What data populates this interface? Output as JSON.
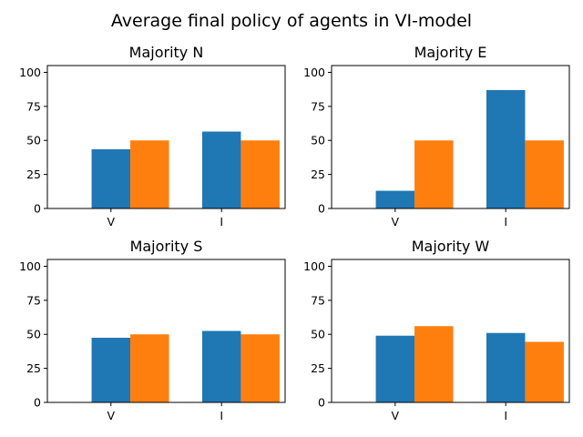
{
  "figure_title": "Average final policy of agents in VI-model",
  "colors": {
    "series_a": "#1f77b4",
    "series_b": "#ff7f0e"
  },
  "chart_data": [
    {
      "type": "bar",
      "title": "Majority N",
      "categories": [
        "V",
        "I"
      ],
      "series": [
        {
          "values": [
            43.5,
            56.5
          ]
        },
        {
          "values": [
            50,
            50
          ]
        }
      ],
      "ylim": [
        0,
        105
      ],
      "yticks": [
        0,
        25,
        50,
        75,
        100
      ],
      "grid": false
    },
    {
      "type": "bar",
      "title": "Majority E",
      "categories": [
        "V",
        "I"
      ],
      "series": [
        {
          "values": [
            13,
            87
          ]
        },
        {
          "values": [
            50,
            50
          ]
        }
      ],
      "ylim": [
        0,
        105
      ],
      "yticks": [
        0,
        25,
        50,
        75,
        100
      ],
      "grid": false
    },
    {
      "type": "bar",
      "title": "Majority S",
      "categories": [
        "V",
        "I"
      ],
      "series": [
        {
          "values": [
            47.5,
            52.5
          ]
        },
        {
          "values": [
            50,
            50
          ]
        }
      ],
      "ylim": [
        0,
        105
      ],
      "yticks": [
        0,
        25,
        50,
        75,
        100
      ],
      "grid": false
    },
    {
      "type": "bar",
      "title": "Majority W",
      "categories": [
        "V",
        "I"
      ],
      "series": [
        {
          "values": [
            49,
            51
          ]
        },
        {
          "values": [
            56,
            44.5
          ]
        }
      ],
      "ylim": [
        0,
        105
      ],
      "yticks": [
        0,
        25,
        50,
        75,
        100
      ],
      "grid": false
    }
  ]
}
